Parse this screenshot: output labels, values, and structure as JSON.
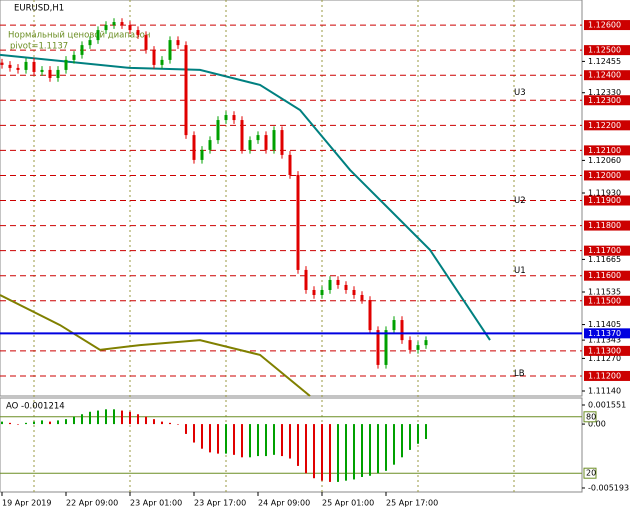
{
  "chart_data": {
    "type": "candlestick",
    "title": "EURUSD,H1",
    "subtitle": "Нормальный ценовой диапазон",
    "pivot_label": "pivot=1.1137",
    "xlim": [
      -0.25,
      72.5
    ],
    "ylim": [
      1.1112,
      1.127
    ],
    "xticks": [
      {
        "value": 0,
        "label": "19 Apr 2019"
      },
      {
        "value": 8,
        "label": "22 Apr 09:00"
      },
      {
        "value": 16,
        "label": "23 Apr 01:00"
      },
      {
        "value": 24,
        "label": "23 Apr 17:00"
      },
      {
        "value": 32,
        "label": "24 Apr 09:00"
      },
      {
        "value": 40,
        "label": "25 Apr 01:00"
      },
      {
        "value": 48,
        "label": "25 Apr 17:00"
      }
    ],
    "yticks": [
      {
        "value": 1.12455,
        "label": "1.12455"
      },
      {
        "value": 1.1233,
        "label": "1.12330"
      },
      {
        "value": 1.1206,
        "label": "1.12060"
      },
      {
        "value": 1.1193,
        "label": "1.11930"
      },
      {
        "value": 1.11665,
        "label": "1.11665"
      },
      {
        "value": 1.11535,
        "label": "1.11535"
      },
      {
        "value": 1.11405,
        "label": "1.11405"
      },
      {
        "value": 1.11343,
        "label": "1.11343"
      },
      {
        "value": 1.1127,
        "label": "1.11270"
      },
      {
        "value": 1.1114,
        "label": "1.11140"
      }
    ],
    "levels": [
      {
        "value": 1.126,
        "label": "1.12600"
      },
      {
        "value": 1.125,
        "label": "1.12500"
      },
      {
        "value": 1.124,
        "label": "1.12400"
      },
      {
        "value": 1.123,
        "label": "1.12300"
      },
      {
        "value": 1.122,
        "label": "1.12200"
      },
      {
        "value": 1.121,
        "label": "1.12100"
      },
      {
        "value": 1.12,
        "label": "1.12000"
      },
      {
        "value": 1.119,
        "label": "1.11900"
      },
      {
        "value": 1.118,
        "label": "1.11800"
      },
      {
        "value": 1.117,
        "label": "1.11700"
      },
      {
        "value": 1.116,
        "label": "1.11600"
      },
      {
        "value": 1.115,
        "label": "1.11500"
      },
      {
        "value": 1.113,
        "label": "1.11300"
      },
      {
        "value": 1.112,
        "label": "1.11200"
      }
    ],
    "level_color": "#cc0000",
    "pivot": {
      "value": 1.1137,
      "label": "1.11370",
      "color": "#0000e0"
    },
    "up_color": "#00a000",
    "down_color": "#e00000",
    "open": [
      1.1245,
      1.12441,
      1.12429,
      1.12421,
      1.12453,
      1.12413,
      1.12421,
      1.12389,
      1.12421,
      1.12461,
      1.12481,
      1.1252,
      1.1254,
      1.1258,
      1.126,
      1.12612,
      1.126,
      1.1258,
      1.1256,
      1.12501,
      1.12441,
      1.12461,
      1.1254,
      1.1252,
      1.12161,
      1.12062,
      1.12102,
      1.12141,
      1.12221,
      1.12241,
      1.12221,
      1.12102,
      1.12141,
      1.12161,
      1.12102,
      1.12181,
      1.12082,
      1.12002,
      1.11623,
      1.11543,
      1.11523,
      1.11543,
      1.11583,
      1.11563,
      1.11543,
      1.11523,
      1.11503,
      1.11383,
      1.11244,
      1.11383,
      1.11423,
      1.11343,
      1.11304,
      1.11323
    ],
    "high": [
      1.12465,
      1.12456,
      1.12444,
      1.12468,
      1.12468,
      1.12436,
      1.12436,
      1.12436,
      1.12476,
      1.12496,
      1.12535,
      1.12555,
      1.12595,
      1.12615,
      1.12627,
      1.12627,
      1.12615,
      1.12595,
      1.12575,
      1.12516,
      1.12476,
      1.12555,
      1.12555,
      1.12535,
      1.12176,
      1.12117,
      1.12156,
      1.12236,
      1.12256,
      1.12256,
      1.12236,
      1.12156,
      1.12176,
      1.12176,
      1.12196,
      1.12196,
      1.12097,
      1.12017,
      1.11638,
      1.11558,
      1.11558,
      1.11598,
      1.11598,
      1.11578,
      1.11558,
      1.11538,
      1.11518,
      1.11398,
      1.11398,
      1.11438,
      1.11438,
      1.11358,
      1.11338,
      1.11358
    ],
    "low": [
      1.12426,
      1.12414,
      1.12406,
      1.12406,
      1.12398,
      1.12398,
      1.12374,
      1.12374,
      1.12406,
      1.12446,
      1.12466,
      1.12505,
      1.12525,
      1.12565,
      1.12585,
      1.12585,
      1.12565,
      1.12545,
      1.12486,
      1.12426,
      1.12426,
      1.12446,
      1.12505,
      1.12146,
      1.12047,
      1.12047,
      1.12087,
      1.12126,
      1.12206,
      1.12206,
      1.12087,
      1.12087,
      1.12126,
      1.12087,
      1.12087,
      1.12067,
      1.11987,
      1.11608,
      1.11528,
      1.11508,
      1.11508,
      1.11528,
      1.11548,
      1.11528,
      1.11508,
      1.11488,
      1.11368,
      1.11229,
      1.11229,
      1.11368,
      1.11328,
      1.11289,
      1.11289,
      1.11308
    ],
    "close": [
      1.12441,
      1.12429,
      1.12421,
      1.12453,
      1.12413,
      1.12421,
      1.12389,
      1.12421,
      1.12461,
      1.12481,
      1.1252,
      1.1254,
      1.1258,
      1.126,
      1.12612,
      1.126,
      1.1258,
      1.1256,
      1.12501,
      1.12441,
      1.12461,
      1.1254,
      1.1252,
      1.12161,
      1.12062,
      1.12102,
      1.12141,
      1.12221,
      1.12241,
      1.12221,
      1.12102,
      1.12141,
      1.12161,
      1.12102,
      1.12181,
      1.12082,
      1.12002,
      1.11623,
      1.11543,
      1.11523,
      1.11543,
      1.11583,
      1.11563,
      1.11543,
      1.11523,
      1.11503,
      1.11383,
      1.11244,
      1.11383,
      1.11423,
      1.11343,
      1.11304,
      1.11323,
      1.11343
    ],
    "lines": [
      {
        "color": "#008080",
        "x": [
          -0.25,
          16,
          24.75,
          32.25,
          37.25,
          43.5,
          53.5,
          61
        ],
        "values": [
          1.12481,
          1.12429,
          1.12421,
          1.12361,
          1.12261,
          1.12022,
          1.11703,
          1.11343
        ]
      },
      {
        "color": "#808000",
        "x": [
          -0.25,
          7.25,
          12.25,
          17.25,
          24.75,
          32.25,
          38.5
        ],
        "values": [
          1.11523,
          1.11403,
          1.11304,
          1.11323,
          1.11343,
          1.11284,
          1.1112
        ]
      }
    ],
    "band_labels": [
      {
        "label": "U3",
        "x": 64,
        "value": 1.1233
      },
      {
        "label": "U2",
        "x": 64,
        "value": 1.119
      },
      {
        "label": "U1",
        "x": 64,
        "value": 1.1162
      },
      {
        "label": "LB",
        "x": 64,
        "value": 1.1121
      }
    ],
    "indicator": {
      "type": "bar",
      "title": "AO -0.001214",
      "ylim": [
        -0.00552,
        0.00212
      ],
      "yticks": [
        0.001551,
        {
          "value": 0,
          "label": "0.00"
        },
        -0.005193
      ],
      "levels_ylim": [
        0,
        100
      ],
      "levels": [
        80,
        20
      ],
      "values": [
        0.0002,
        0.0001,
        0.0,
        0.0001,
        0.0002,
        0.0003,
        0.0002,
        0.0003,
        0.0004,
        0.0006,
        0.0008,
        0.001,
        0.0011,
        0.0012,
        0.0012,
        0.0011,
        0.001,
        0.0008,
        0.0006,
        0.0004,
        0.0002,
        0.0001,
        0.0,
        -0.0008,
        -0.0015,
        -0.002,
        -0.0023,
        -0.0024,
        -0.0024,
        -0.0025,
        -0.0027,
        -0.0027,
        -0.0026,
        -0.0026,
        -0.0025,
        -0.0026,
        -0.0028,
        -0.0034,
        -0.004,
        -0.0044,
        -0.0046,
        -0.0047,
        -0.0047,
        -0.0046,
        -0.0045,
        -0.0043,
        -0.0042,
        -0.004,
        -0.0038,
        -0.0033,
        -0.0027,
        -0.0021,
        -0.0016,
        -0.001214
      ]
    }
  }
}
